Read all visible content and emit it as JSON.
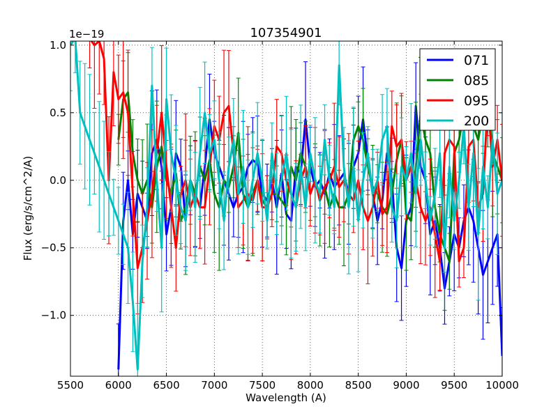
{
  "chart_data": {
    "type": "line",
    "title": "107354901",
    "xlabel": "Wavelength (A)",
    "ylabel": "Flux (erg/s/cm^2/A)",
    "offset_label": "1e−19",
    "xlim": [
      5500,
      10000
    ],
    "ylim": [
      -1.45,
      1.03
    ],
    "xticks": [
      5500,
      6000,
      6500,
      7000,
      7500,
      8000,
      8500,
      9000,
      9500,
      10000
    ],
    "xtick_labels": [
      "5500",
      "6000",
      "6500",
      "7000",
      "7500",
      "8000",
      "8500",
      "9000",
      "9500",
      "10000"
    ],
    "yticks": [
      -1.0,
      -0.5,
      0.0,
      0.5,
      1.0
    ],
    "ytick_labels": [
      "−1.0",
      "−0.5",
      "0.0",
      "0.5",
      "1.0"
    ],
    "grid": true,
    "legend_position": "top-right",
    "series": [
      {
        "name": "071",
        "color": "#0000ff",
        "x": [
          6000,
          6050,
          6100,
          6150,
          6200,
          6250,
          6300,
          6350,
          6400,
          6450,
          6500,
          6550,
          6600,
          6650,
          6700,
          6750,
          6800,
          6850,
          6900,
          6950,
          7000,
          7050,
          7100,
          7150,
          7200,
          7250,
          7300,
          7350,
          7400,
          7450,
          7500,
          7550,
          7600,
          7650,
          7700,
          7750,
          7800,
          7850,
          7900,
          7950,
          8000,
          8050,
          8100,
          8150,
          8200,
          8250,
          8300,
          8350,
          8400,
          8450,
          8500,
          8550,
          8600,
          8650,
          8700,
          8750,
          8800,
          8850,
          8900,
          8950,
          9000,
          9050,
          9100,
          9150,
          9200,
          9250,
          9300,
          9350,
          9400,
          9450,
          9500,
          9550,
          9600,
          9650,
          9700,
          9750,
          9800,
          9850,
          9900,
          9950,
          10000
        ],
        "y": [
          -1.4,
          -0.3,
          0.0,
          -0.4,
          -0.1,
          -0.2,
          -0.3,
          0.2,
          0.3,
          0.1,
          -0.4,
          -0.2,
          0.2,
          0.1,
          -0.3,
          0.0,
          -0.1,
          -0.2,
          0.1,
          0.45,
          0.2,
          0.1,
          0.0,
          -0.1,
          -0.2,
          -0.1,
          -0.05,
          0.1,
          0.15,
          0.12,
          -0.1,
          -0.15,
          0.0,
          -0.2,
          0.05,
          -0.25,
          -0.3,
          0.1,
          0.05,
          0.45,
          0.1,
          -0.05,
          0.0,
          -0.1,
          0.05,
          -0.05,
          0.0,
          0.05,
          -0.1,
          0.1,
          0.2,
          0.45,
          0.15,
          -0.1,
          -0.3,
          -0.15,
          0.2,
          0.0,
          -0.5,
          -0.65,
          -0.3,
          -0.2,
          0.55,
          0.1,
          0.0,
          -0.4,
          -0.3,
          -0.5,
          -0.8,
          -0.6,
          -0.4,
          -0.5,
          -0.3,
          -0.2,
          -0.3,
          -0.5,
          -0.7,
          -0.6,
          -0.5,
          -0.4,
          -1.3
        ]
      },
      {
        "name": "085",
        "color": "#008000",
        "x": [
          6000,
          6050,
          6100,
          6150,
          6200,
          6250,
          6300,
          6350,
          6400,
          6450,
          6500,
          6550,
          6600,
          6650,
          6700,
          6750,
          6800,
          6850,
          6900,
          6950,
          7000,
          7050,
          7100,
          7150,
          7200,
          7250,
          7300,
          7350,
          7400,
          7450,
          7500,
          7550,
          7600,
          7650,
          7700,
          7750,
          7800,
          7850,
          7900,
          7950,
          8000,
          8050,
          8100,
          8150,
          8200,
          8250,
          8300,
          8350,
          8400,
          8450,
          8500,
          8550,
          8600,
          8650,
          8700,
          8750,
          8800,
          8850,
          8900,
          8950,
          9000,
          9050,
          9100,
          9150,
          9200,
          9250,
          9300,
          9350,
          9400,
          9450,
          9500,
          9550,
          9600,
          9650,
          9700,
          9750,
          9800,
          9850,
          9900,
          9950,
          10000
        ],
        "y": [
          0.3,
          0.6,
          0.65,
          0.2,
          0.0,
          -0.1,
          0.0,
          -0.2,
          0.1,
          0.25,
          0.0,
          -0.1,
          0.05,
          -0.3,
          -0.2,
          0.0,
          -0.1,
          0.1,
          0.0,
          0.15,
          -0.1,
          -0.2,
          0.0,
          -0.05,
          0.1,
          0.35,
          -0.1,
          -0.2,
          -0.1,
          0.0,
          -0.15,
          -0.2,
          -0.1,
          -0.1,
          -0.15,
          -0.2,
          0.1,
          0.0,
          0.2,
          0.1,
          -0.1,
          0.0,
          -0.15,
          -0.05,
          -0.2,
          -0.1,
          -0.2,
          -0.2,
          -0.1,
          0.3,
          0.4,
          0.3,
          0.1,
          -0.05,
          -0.1,
          -0.2,
          -0.25,
          -0.1,
          0.15,
          0.3,
          -0.25,
          -0.3,
          0.1,
          0.5,
          0.3,
          0.2,
          -0.2,
          -0.4,
          -0.5,
          -0.6,
          0.2,
          0.3,
          0.5,
          0.6,
          0.4,
          0.3,
          0.5,
          0.6,
          0.2,
          0.1,
          0.0
        ]
      },
      {
        "name": "095",
        "color": "#ff0000",
        "x": [
          5700,
          5750,
          5800,
          5850,
          5900,
          5950,
          6000,
          6050,
          6100,
          6150,
          6200,
          6250,
          6300,
          6350,
          6400,
          6450,
          6500,
          6550,
          6600,
          6650,
          6700,
          6750,
          6800,
          6850,
          6900,
          6950,
          7000,
          7050,
          7100,
          7150,
          7200,
          7250,
          7300,
          7350,
          7400,
          7450,
          7500,
          7550,
          7600,
          7650,
          7700,
          7750,
          7800,
          7850,
          7900,
          7950,
          8000,
          8050,
          8100,
          8150,
          8200,
          8250,
          8300,
          8350,
          8400,
          8450,
          8500,
          8550,
          8600,
          8650,
          8700,
          8750,
          8800,
          8850,
          8900,
          8950,
          9000,
          9050,
          9100,
          9150,
          9200,
          9250,
          9300,
          9350,
          9400,
          9450,
          9500,
          9550,
          9600,
          9650,
          9700,
          9750,
          9800,
          9850,
          9900,
          9950,
          10000
        ],
        "y": [
          1.05,
          1.0,
          1.03,
          0.9,
          0.0,
          0.8,
          0.6,
          0.65,
          0.5,
          -0.1,
          -0.65,
          -0.5,
          -0.3,
          -0.1,
          0.2,
          0.5,
          0.1,
          -0.2,
          -0.5,
          -0.1,
          0.0,
          -0.2,
          -0.1,
          -0.2,
          -0.2,
          0.1,
          0.4,
          0.3,
          0.5,
          0.55,
          0.2,
          -0.2,
          -0.15,
          -0.1,
          -0.15,
          0.0,
          -0.2,
          -0.2,
          -0.1,
          0.25,
          0.2,
          0.0,
          -0.1,
          -0.2,
          0.0,
          0.1,
          -0.1,
          0.0,
          -0.15,
          -0.05,
          0.0,
          0.1,
          -0.05,
          0.0,
          -0.1,
          -0.15,
          0.0,
          -0.2,
          -0.3,
          -0.2,
          0.0,
          -0.25,
          -0.2,
          0.4,
          0.25,
          0.3,
          0.0,
          0.1,
          0.0,
          -0.2,
          -0.3,
          -0.2,
          -0.4,
          -0.6,
          0.2,
          0.3,
          0.25,
          -0.6,
          -0.5,
          0.25,
          0.3,
          -0.2,
          -0.1,
          0.6,
          0.1,
          0.3,
          0.0
        ]
      },
      {
        "name": "200",
        "color": "#00bfbf",
        "x": [
          5500,
          5550,
          5600,
          5650,
          5700,
          5750,
          5800,
          5850,
          5900,
          5950,
          6000,
          6050,
          6100,
          6150,
          6200,
          6250,
          6300,
          6350,
          6400,
          6450,
          6500,
          6550,
          6600,
          6650,
          6700,
          6750,
          6800,
          6850,
          6900,
          6950,
          7000,
          7050,
          7100,
          7150,
          7200,
          7250,
          7300,
          7350,
          7400,
          7450,
          7500,
          7550,
          7600,
          7650,
          7700,
          7750,
          7800,
          7850,
          7900,
          7950,
          8000,
          8050,
          8100,
          8150,
          8200,
          8250,
          8300,
          8350,
          8400,
          8450,
          8500,
          8550,
          8600,
          8650,
          8700,
          8750,
          8800,
          8850,
          8900,
          8950,
          9000,
          9050,
          9100,
          9150,
          9200,
          9250,
          9300,
          9350,
          9400,
          9450,
          9500,
          9550,
          9600,
          9650,
          9700,
          9750,
          9800,
          9850,
          9900,
          9950,
          10000
        ],
        "y": [
          1.0,
          1.05,
          0.5,
          0.4,
          0.3,
          0.2,
          0.1,
          0.0,
          -0.1,
          -0.2,
          -0.3,
          -0.4,
          -0.5,
          -0.9,
          -1.4,
          -0.6,
          -0.2,
          0.7,
          0.0,
          -0.5,
          0.6,
          0.2,
          0.0,
          -0.2,
          -0.3,
          0.0,
          -0.2,
          0.2,
          0.5,
          0.2,
          0.3,
          0.0,
          -0.3,
          0.1,
          0.3,
          -0.1,
          0.1,
          -0.2,
          0.0,
          0.2,
          0.0,
          -0.3,
          0.2,
          -0.1,
          0.0,
          0.2,
          -0.1,
          -0.2,
          0.1,
          -0.2,
          0.2,
          0.0,
          -0.1,
          0.3,
          0.0,
          -0.2,
          0.85,
          0.1,
          -0.2,
          0.1,
          -0.3,
          0.0,
          0.2,
          -0.1,
          0.0,
          0.3,
          0.4,
          -0.2,
          -0.3,
          0.1,
          0.0,
          0.2,
          -0.1,
          0.3,
          0.0,
          -0.3,
          -0.1,
          0.2,
          -0.5,
          0.1,
          -0.3,
          0.0,
          0.4,
          -0.2,
          0.2,
          -0.4,
          0.1,
          -0.2,
          0.3,
          -0.1,
          0.0
        ]
      }
    ]
  }
}
